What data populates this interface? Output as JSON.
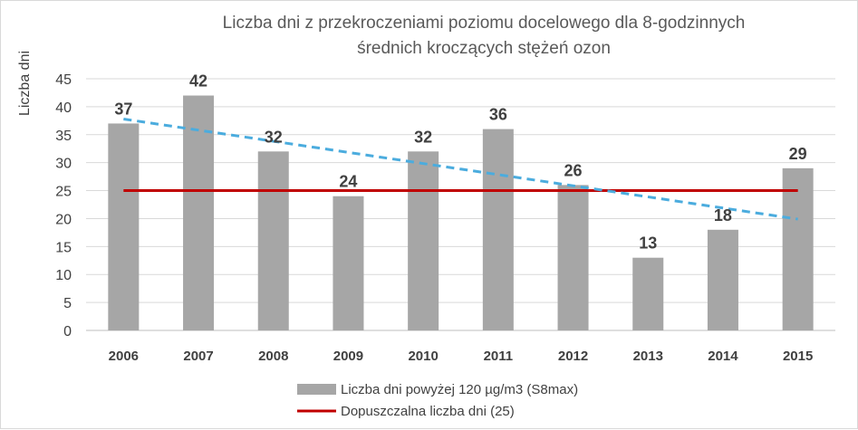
{
  "chart_data": {
    "type": "bar",
    "title_lines": [
      "Liczba dni z przekroczeniami poziomu docelowego dla 8-godzinnych",
      "średnich kroczących stężeń ozon"
    ],
    "ylabel": "Liczba dni",
    "xlabel": "",
    "ylim": [
      0,
      45
    ],
    "yticks": [
      "0",
      "5",
      "10",
      "15",
      "20",
      "25",
      "30",
      "35",
      "40",
      "45"
    ],
    "categories": [
      "2006",
      "2007",
      "2008",
      "2009",
      "2010",
      "2011",
      "2012",
      "2013",
      "2014",
      "2015"
    ],
    "series": [
      {
        "name": "Liczba dni powyżej 120 µg/m3 (S8max)",
        "kind": "bar",
        "color": "#a6a6a6",
        "values": [
          37,
          42,
          32,
          24,
          32,
          36,
          26,
          13,
          18,
          29
        ]
      },
      {
        "name": "Dopuszczalna liczba dni (25)",
        "kind": "line",
        "color": "#c00000",
        "value": 25
      }
    ],
    "trendline": {
      "color": "#4bacde",
      "style": "dashed",
      "start": 37.8,
      "end": 19.9
    },
    "grid": true,
    "legend_position": "bottom"
  }
}
